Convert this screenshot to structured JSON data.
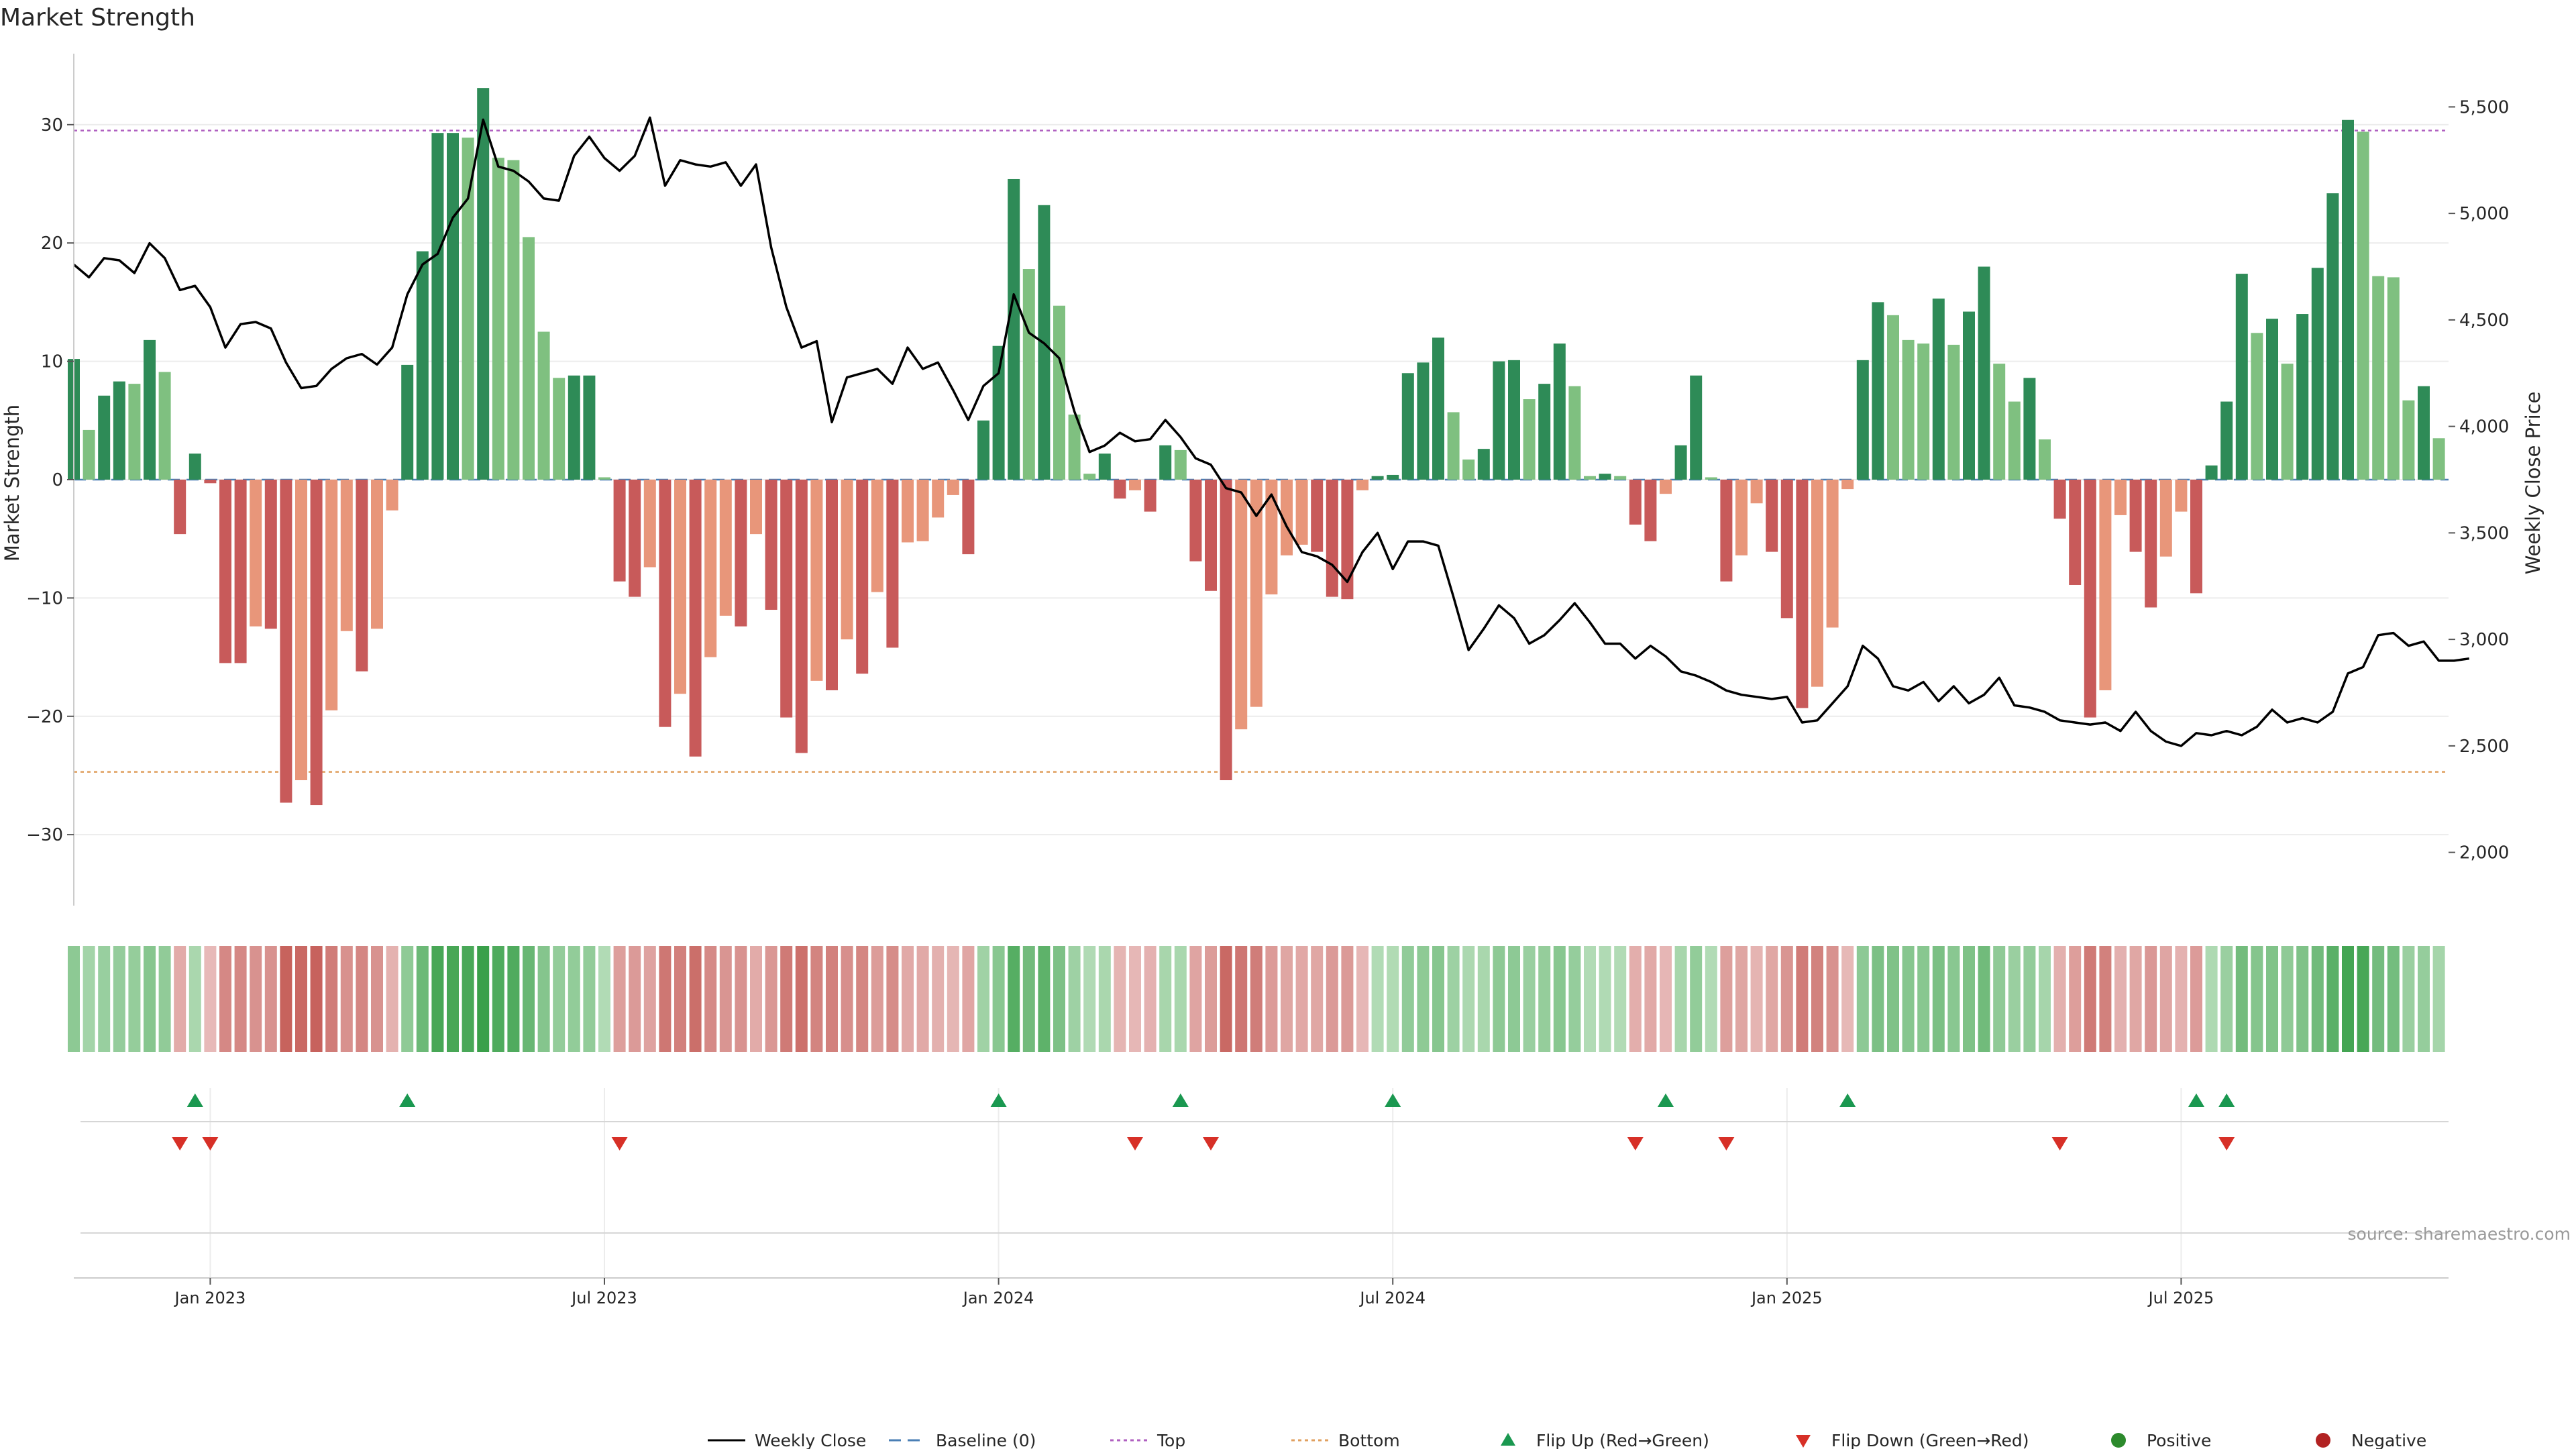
{
  "chart_data": {
    "type": "bar",
    "title": "Market Strength",
    "ylabel_left": "Market Strength",
    "ylabel_right": "Weekly Close Price",
    "ylim_left": [
      -36,
      36
    ],
    "ylim_right": [
      1750,
      5750
    ],
    "left_ticks": [
      -30,
      -20,
      -10,
      0,
      10,
      20,
      30
    ],
    "right_ticks": [
      2000,
      2500,
      3000,
      3500,
      4000,
      4500,
      5000,
      5500
    ],
    "right_tick_labels": [
      "2,000",
      "2,500",
      "3,000",
      "3,500",
      "4,000",
      "4,500",
      "5,000",
      "5,500"
    ],
    "top_level": 29.5,
    "bottom_level": -24.7,
    "x_tick_labels": [
      "Jan 2023",
      "Jul 2023",
      "Jan 2024",
      "Jul 2024",
      "Jan 2025",
      "Jul 2025"
    ],
    "x_tick_index": [
      9,
      35,
      61,
      87,
      113,
      139
    ],
    "strength": [
      10.2,
      4.2,
      7.1,
      8.3,
      8.1,
      11.8,
      9.1,
      -4.6,
      2.2,
      -0.3,
      -15.5,
      -15.5,
      -12.4,
      -12.6,
      -27.3,
      -25.4,
      -27.5,
      -19.5,
      -12.8,
      -16.2,
      -12.6,
      -2.6,
      9.7,
      19.3,
      29.3,
      29.3,
      28.9,
      33.1,
      27.2,
      27.0,
      20.5,
      12.5,
      8.6,
      8.8,
      8.8,
      0.2,
      -8.6,
      -9.9,
      -7.4,
      -20.9,
      -18.1,
      -23.4,
      -15.0,
      -11.5,
      -12.4,
      -4.6,
      -11.0,
      -20.1,
      -23.1,
      -17.0,
      -17.8,
      -13.5,
      -16.4,
      -9.5,
      -14.2,
      -5.3,
      -5.2,
      -3.2,
      -1.3,
      -6.3,
      5.0,
      11.3,
      25.4,
      17.8,
      23.2,
      14.7,
      5.5,
      0.5,
      2.2,
      -1.6,
      -0.9,
      -2.7,
      2.9,
      2.5,
      -6.9,
      -9.4,
      -25.4,
      -21.1,
      -19.2,
      -9.7,
      -6.4,
      -5.5,
      -6.1,
      -9.9,
      -10.1,
      -0.9,
      0.3,
      0.4,
      9.0,
      9.9,
      12.0,
      5.7,
      1.7,
      2.6,
      10.0,
      10.1,
      6.8,
      8.1,
      11.5,
      7.9,
      0.3,
      0.5,
      0.3,
      -3.8,
      -5.2,
      -1.2,
      2.9,
      8.8,
      0.2,
      -8.6,
      -6.4,
      -2.0,
      -6.1,
      -11.7,
      -19.3,
      -17.5,
      -12.5,
      -0.8,
      10.1,
      15.0,
      13.9,
      11.8,
      11.5,
      15.3,
      11.4,
      14.2,
      18.0,
      9.8,
      6.6,
      8.6,
      3.4,
      -3.3,
      -8.9,
      -20.1,
      -17.8,
      -3.0,
      -6.1,
      -10.8,
      -6.5,
      -2.7,
      -9.6,
      1.2,
      6.6,
      17.4,
      12.4,
      13.6,
      9.8,
      14.0,
      17.9,
      24.2,
      30.4,
      29.4,
      17.2,
      17.1,
      6.7,
      7.9,
      3.5
    ],
    "weekly_close": [
      4760,
      4700,
      4790,
      4780,
      4720,
      4860,
      4790,
      4640,
      4660,
      4560,
      4370,
      4480,
      4490,
      4460,
      4300,
      4180,
      4190,
      4270,
      4320,
      4340,
      4290,
      4370,
      4620,
      4760,
      4810,
      4980,
      5070,
      5440,
      5220,
      5200,
      5150,
      5070,
      5060,
      5270,
      5360,
      5260,
      5200,
      5270,
      5450,
      5130,
      5250,
      5230,
      5220,
      5240,
      5130,
      5230,
      4840,
      4560,
      4370,
      4400,
      4020,
      4230,
      4250,
      4270,
      4200,
      4370,
      4270,
      4300,
      4170,
      4030,
      4190,
      4250,
      4620,
      4440,
      4390,
      4320,
      4070,
      3880,
      3910,
      3970,
      3930,
      3940,
      4030,
      3950,
      3850,
      3820,
      3710,
      3690,
      3580,
      3680,
      3530,
      3410,
      3390,
      3350,
      3270,
      3410,
      3500,
      3330,
      3460,
      3460,
      3440,
      3200,
      2950,
      3050,
      3160,
      3100,
      2980,
      3020,
      3090,
      3170,
      3080,
      2980,
      2980,
      2910,
      2970,
      2920,
      2850,
      2830,
      2800,
      2760,
      2740,
      2730,
      2720,
      2730,
      2610,
      2620,
      2700,
      2780,
      2970,
      2910,
      2780,
      2760,
      2800,
      2710,
      2780,
      2700,
      2740,
      2820,
      2690,
      2680,
      2660,
      2620,
      2610,
      2600,
      2610,
      2570,
      2660,
      2570,
      2520,
      2500,
      2560,
      2550,
      2570,
      2550,
      2590,
      2670,
      2610,
      2630,
      2610,
      2660,
      2840,
      2870,
      3020,
      3030,
      2970,
      2990,
      2900,
      2900,
      2910
    ],
    "flip_up_index": [
      8,
      22,
      61,
      73,
      87,
      105,
      117,
      140,
      142
    ],
    "flip_down_index": [
      7,
      9,
      36,
      70,
      75,
      103,
      109,
      131,
      142
    ],
    "legend": [
      "Weekly Close",
      "Baseline (0)",
      "Top",
      "Bottom",
      "Flip Up (Red→Green)",
      "Flip Down (Green→Red)",
      "Positive",
      "Negative"
    ],
    "legend_position": "bottom-center",
    "source": "source: sharemaestro.com",
    "colors": {
      "pos_strong": "#2e8b57",
      "pos_light": "#7fc080",
      "neg_strong": "#c85a5a",
      "neg_light": "#e8967a",
      "close_line": "#000000",
      "baseline": "#4a7fb5",
      "top": "#b060c0",
      "bottom": "#e0a060",
      "flip_up": "#1a9850",
      "flip_down": "#d73027",
      "positive_dot": "#2c8a2c",
      "negative_dot": "#b22222"
    }
  }
}
